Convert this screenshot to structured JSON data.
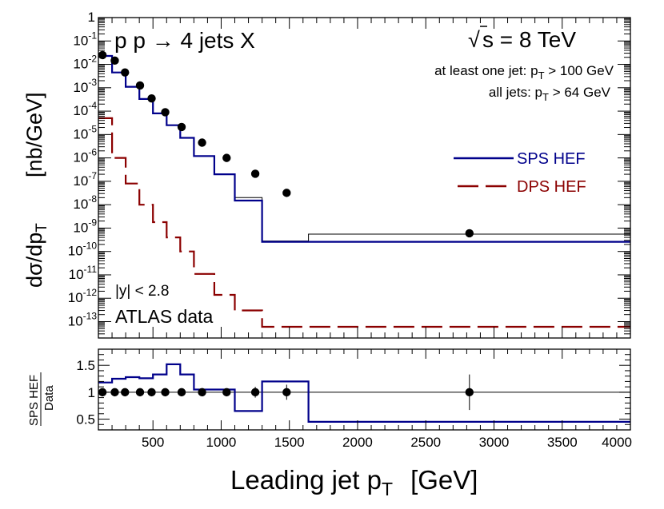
{
  "chart_data": [
    {
      "type": "step-and-scatter",
      "panel": "main",
      "title": "p p → 4 jets X",
      "energy_label_main": "s = 8 TeV",
      "energy_label_root": "√",
      "cut_labels": {
        "line1_main": "at least one jet: p",
        "line1_sub": "T",
        "line1_rest": " > 100 GeV",
        "line2_main": "all jets: p",
        "line2_sub": "T",
        "line2_rest": " > 64 GeV"
      },
      "rapidity_label": "|y| < 2.8",
      "experiment_label": "ATLAS data",
      "ylabel_main": "dσ/dp",
      "ylabel_sub": "T",
      "ylabel_units": "[nb/GeV]",
      "yscale": "log",
      "ylim": [
        5e-14,
        1
      ],
      "xlim": [
        100,
        4000
      ],
      "y_ticks": [
        {
          "exp": 0,
          "text": "1",
          "sup": ""
        },
        {
          "exp": -1,
          "text": "10",
          "sup": "-1"
        },
        {
          "exp": -2,
          "text": "10",
          "sup": "-2"
        },
        {
          "exp": -3,
          "text": "10",
          "sup": "-3"
        },
        {
          "exp": -4,
          "text": "10",
          "sup": "-4"
        },
        {
          "exp": -5,
          "text": "10",
          "sup": "-5"
        },
        {
          "exp": -6,
          "text": "10",
          "sup": "-6"
        },
        {
          "exp": -7,
          "text": "10",
          "sup": "-7"
        },
        {
          "exp": -8,
          "text": "10",
          "sup": "-8"
        },
        {
          "exp": -9,
          "text": "10",
          "sup": "-9"
        },
        {
          "exp": -10,
          "text": "10",
          "sup": "-10"
        },
        {
          "exp": -11,
          "text": "10",
          "sup": "-11"
        },
        {
          "exp": -12,
          "text": "10",
          "sup": "-12"
        },
        {
          "exp": -13,
          "text": "10",
          "sup": "-13"
        }
      ],
      "bin_edges": [
        100,
        200,
        300,
        400,
        500,
        600,
        700,
        800,
        950,
        1100,
        1300,
        1640,
        4000
      ],
      "series": [
        {
          "name": "SPS HEF",
          "style": "step-solid",
          "color": "#00008b",
          "values": [
            0.023,
            0.0045,
            0.0011,
            0.00033,
            8e-05,
            2.5e-05,
            7.2e-06,
            1.2e-06,
            2e-07,
            1.5e-08,
            2.6e-10,
            2.6e-10
          ]
        },
        {
          "name": "DPS HEF",
          "style": "step-dashed",
          "color": "#8b0000",
          "values": [
            5e-05,
            1e-06,
            8e-08,
            1e-08,
            1.8e-09,
            4e-10,
            1e-10,
            1.1e-11,
            1.4e-12,
            3e-13,
            6e-14,
            6e-14
          ]
        },
        {
          "name": "ATLAS data",
          "style": "markers",
          "color": "#000000",
          "x": [
            130,
            220,
            295,
            405,
            490,
            590,
            710,
            860,
            1040,
            1250,
            1480,
            2820
          ],
          "y": [
            0.025,
            0.0145,
            0.0045,
            0.00125,
            0.00035,
            9e-05,
            2.1e-05,
            4.5e-06,
            1e-06,
            2.1e-07,
            3.2e-08,
            6e-10
          ]
        }
      ],
      "data_model_line": {
        "name": "model (thin black)",
        "values": [
          0.023,
          0.0045,
          0.0011,
          0.00033,
          8e-05,
          2.5e-05,
          7.2e-06,
          1.2e-06,
          2e-07,
          2e-08,
          2.8e-10,
          5.5e-10
        ]
      },
      "legend": [
        {
          "label": "SPS HEF",
          "style": "solid",
          "color": "#00008b"
        },
        {
          "label": "DPS HEF",
          "style": "dashed",
          "color": "#8b0000"
        }
      ]
    },
    {
      "type": "step-and-scatter",
      "panel": "ratio",
      "ylabel_num": "SPS HEF",
      "ylabel_den": "Data",
      "xlabel_main": "Leading jet p",
      "xlabel_sub": "T",
      "xlabel_units": "[GeV]",
      "xlim": [
        100,
        4000
      ],
      "ylim": [
        0.3,
        1.8
      ],
      "x_ticks": [
        500,
        1000,
        1500,
        2000,
        2500,
        3000,
        3500,
        4000
      ],
      "x_tick_labels": [
        "500",
        "1000",
        "1500",
        "2000",
        "2500",
        "3000",
        "3500",
        "4000"
      ],
      "y_ticks": [
        0.5,
        1,
        1.5
      ],
      "y_tick_labels": [
        "0.5",
        "1",
        "1.5"
      ],
      "reference_line": 1,
      "ratio_series": {
        "name": "SPS HEF / Data",
        "color": "#00008b",
        "values": [
          1.18,
          1.25,
          1.28,
          1.26,
          1.33,
          1.52,
          1.33,
          1.05,
          1.05,
          0.65,
          1.2,
          0.45
        ]
      },
      "ratio_points": {
        "x": [
          130,
          220,
          295,
          405,
          490,
          590,
          710,
          860,
          1040,
          1250,
          1480,
          2820
        ],
        "y": [
          1,
          1,
          1,
          1,
          1,
          1,
          1,
          1,
          1,
          1,
          1,
          1
        ],
        "err": [
          0.02,
          0.02,
          0.02,
          0.02,
          0.02,
          0.02,
          0.02,
          0.03,
          0.06,
          0.1,
          0.14,
          0.33
        ]
      }
    }
  ]
}
